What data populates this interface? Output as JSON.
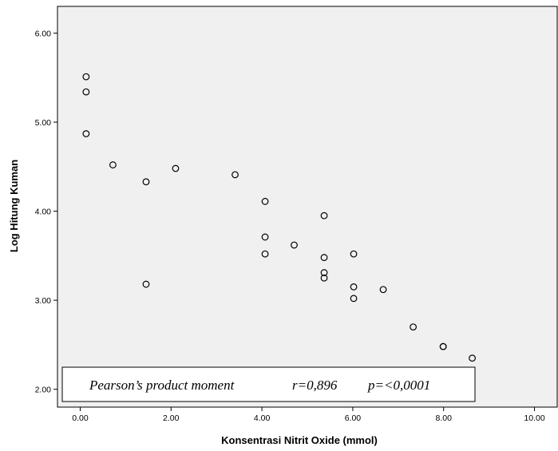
{
  "chart_data": {
    "type": "scatter",
    "xlabel": "Konsentrasi Nitrit Oxide (mmol)",
    "ylabel": "Log Hitung Kuman",
    "xlim": [
      -0.5,
      10.5
    ],
    "ylim": [
      1.8,
      6.3
    ],
    "x_ticks": [
      "0.00",
      "2.00",
      "4.00",
      "6.00",
      "8.00",
      "10.00"
    ],
    "y_ticks": [
      "2.00",
      "3.00",
      "4.00",
      "5.00",
      "6.00"
    ],
    "x_tick_values": [
      0,
      2,
      4,
      6,
      8,
      10
    ],
    "y_tick_values": [
      2,
      3,
      4,
      5,
      6
    ],
    "points": [
      {
        "x": 0.13,
        "y": 5.51
      },
      {
        "x": 0.13,
        "y": 5.34
      },
      {
        "x": 0.13,
        "y": 4.87
      },
      {
        "x": 0.72,
        "y": 4.52
      },
      {
        "x": 1.45,
        "y": 4.33
      },
      {
        "x": 1.45,
        "y": 3.18
      },
      {
        "x": 2.1,
        "y": 4.48
      },
      {
        "x": 3.41,
        "y": 4.41
      },
      {
        "x": 4.07,
        "y": 4.11
      },
      {
        "x": 4.07,
        "y": 3.71
      },
      {
        "x": 4.07,
        "y": 3.52
      },
      {
        "x": 4.71,
        "y": 3.62
      },
      {
        "x": 5.37,
        "y": 3.95
      },
      {
        "x": 5.37,
        "y": 3.48
      },
      {
        "x": 5.37,
        "y": 3.31
      },
      {
        "x": 5.37,
        "y": 3.25
      },
      {
        "x": 6.02,
        "y": 3.52
      },
      {
        "x": 6.02,
        "y": 3.15
      },
      {
        "x": 6.02,
        "y": 3.02
      },
      {
        "x": 6.67,
        "y": 3.12
      },
      {
        "x": 7.33,
        "y": 2.7
      },
      {
        "x": 7.99,
        "y": 2.48
      },
      {
        "x": 7.99,
        "y": 2.48
      },
      {
        "x": 8.63,
        "y": 2.35
      }
    ],
    "annotation": {
      "method": "Pearson’s product moment",
      "r": "r=0,896",
      "p": "p=<0,0001"
    },
    "grid": false,
    "plot_background": "#f0f0f0",
    "marker_color": "#000000"
  }
}
